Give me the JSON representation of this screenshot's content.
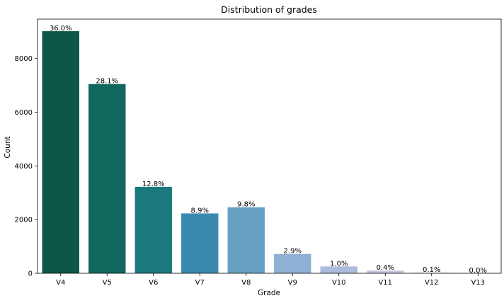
{
  "chart_data": {
    "type": "bar",
    "title": "Distribution of grades",
    "xlabel": "Grade",
    "ylabel": "Count",
    "categories": [
      "V4",
      "V5",
      "V6",
      "V7",
      "V8",
      "V9",
      "V10",
      "V11",
      "V12",
      "V13"
    ],
    "values": [
      9020,
      7050,
      3220,
      2230,
      2460,
      720,
      255,
      100,
      25,
      5
    ],
    "data_labels": [
      "36.0%",
      "28.1%",
      "12.8%",
      "8.9%",
      "9.8%",
      "2.9%",
      "1.0%",
      "0.4%",
      "0.1%",
      "0.0%"
    ],
    "ylim": [
      0,
      9470
    ],
    "yticks": [
      0,
      2000,
      4000,
      6000,
      8000
    ],
    "colors": [
      "#0d5747",
      "#0f675e",
      "#1a787f",
      "#3a8ab0",
      "#66a1c3",
      "#8db0d4",
      "#abbbdb",
      "#c6c8e1",
      "#dcd8ea",
      "#eeebf4"
    ],
    "grid": false,
    "legend": "none"
  }
}
